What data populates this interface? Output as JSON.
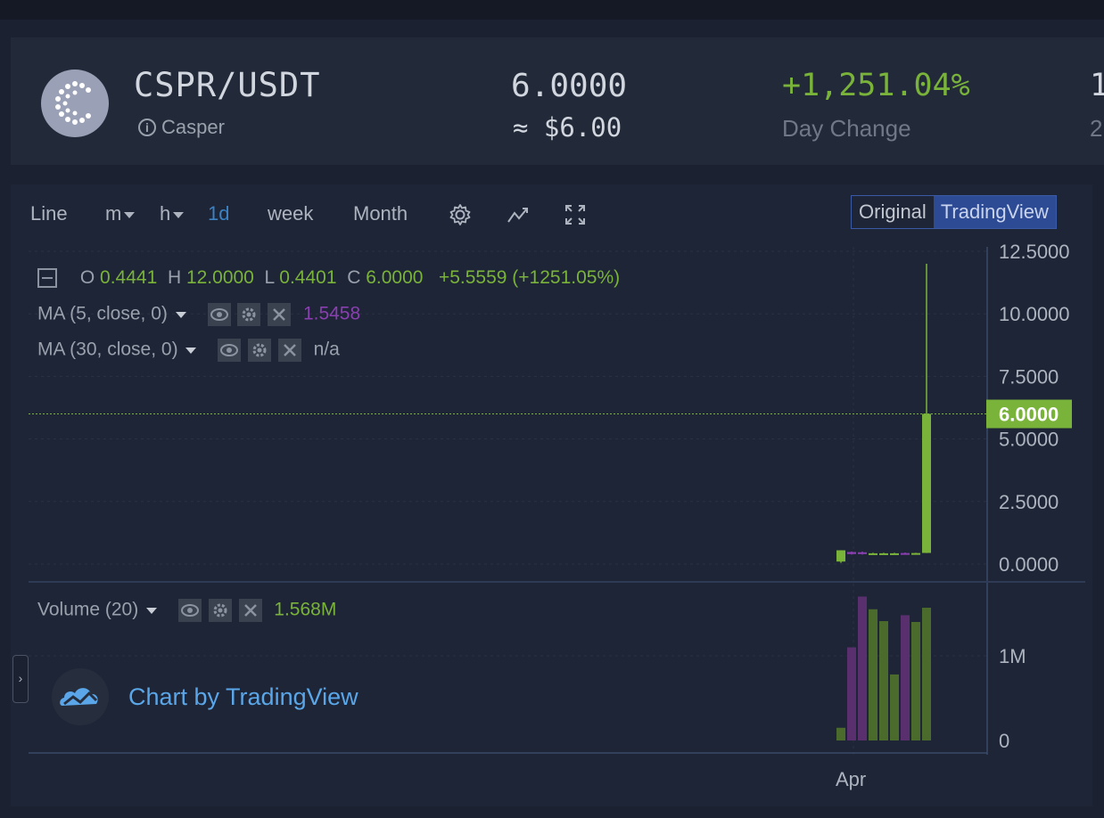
{
  "ticker": {
    "pair": "CSPR/USDT",
    "name": "Casper",
    "info_icon": "info-circle-icon",
    "price": "6.0000",
    "price_usd": "≈ $6.00",
    "day_change": "+1,251.04%",
    "day_change_label": "Day Change",
    "cut_value": "1",
    "cut_label": "2"
  },
  "toolbar": {
    "line": "Line",
    "minutes": "m",
    "hours": "h",
    "day": "1d",
    "week": "week",
    "month": "Month",
    "original": "Original",
    "tradingview": "TradingView"
  },
  "legend": {
    "o_label": "O",
    "o": "0.4441",
    "h_label": "H",
    "h": "12.0000",
    "l_label": "L",
    "l": "0.4401",
    "c_label": "C",
    "c": "6.0000",
    "change": "+5.5559 (+1251.05%)",
    "ma5": "MA (5, close, 0)",
    "ma5_value": "1.5458",
    "ma30": "MA (30, close, 0)",
    "ma30_value": "n/a",
    "volume": "Volume (20)",
    "volume_value": "1.568M"
  },
  "price_axis": [
    "12.5000",
    "10.0000",
    "7.5000",
    "5.0000",
    "2.5000",
    "0.0000"
  ],
  "volume_axis": [
    "1M",
    "0"
  ],
  "x_axis": [
    "Apr"
  ],
  "last_price_label": "6.0000",
  "branding": "Chart by TradingView",
  "colors": {
    "up": "#7ab33a",
    "down": "#8a3fb0",
    "accent": "#3b82c4"
  },
  "chart_data": {
    "type": "candlestick",
    "y_range": [
      0,
      12.5
    ],
    "volume_range": [
      0,
      1800000
    ],
    "last_price": 6.0,
    "candles": [
      {
        "open": 0.1,
        "high": 0.55,
        "low": 0.05,
        "close": 0.55,
        "volume": 150000,
        "dir": "up"
      },
      {
        "open": 0.48,
        "high": 0.5,
        "low": 0.38,
        "close": 0.4,
        "volume": 1100000,
        "dir": "down"
      },
      {
        "open": 0.47,
        "high": 0.5,
        "low": 0.38,
        "close": 0.4,
        "volume": 1700000,
        "dir": "down"
      },
      {
        "open": 0.4,
        "high": 0.45,
        "low": 0.38,
        "close": 0.43,
        "volume": 1550000,
        "dir": "up"
      },
      {
        "open": 0.41,
        "high": 0.45,
        "low": 0.39,
        "close": 0.43,
        "volume": 1410000,
        "dir": "up"
      },
      {
        "open": 0.41,
        "high": 0.45,
        "low": 0.39,
        "close": 0.43,
        "volume": 780000,
        "dir": "up"
      },
      {
        "open": 0.44,
        "high": 0.46,
        "low": 0.4,
        "close": 0.42,
        "volume": 1480000,
        "dir": "down"
      },
      {
        "open": 0.41,
        "high": 0.45,
        "low": 0.39,
        "close": 0.44,
        "volume": 1400000,
        "dir": "up"
      },
      {
        "open": 0.4441,
        "high": 12.0,
        "low": 0.4401,
        "close": 6.0,
        "volume": 1568000,
        "dir": "up"
      }
    ]
  }
}
